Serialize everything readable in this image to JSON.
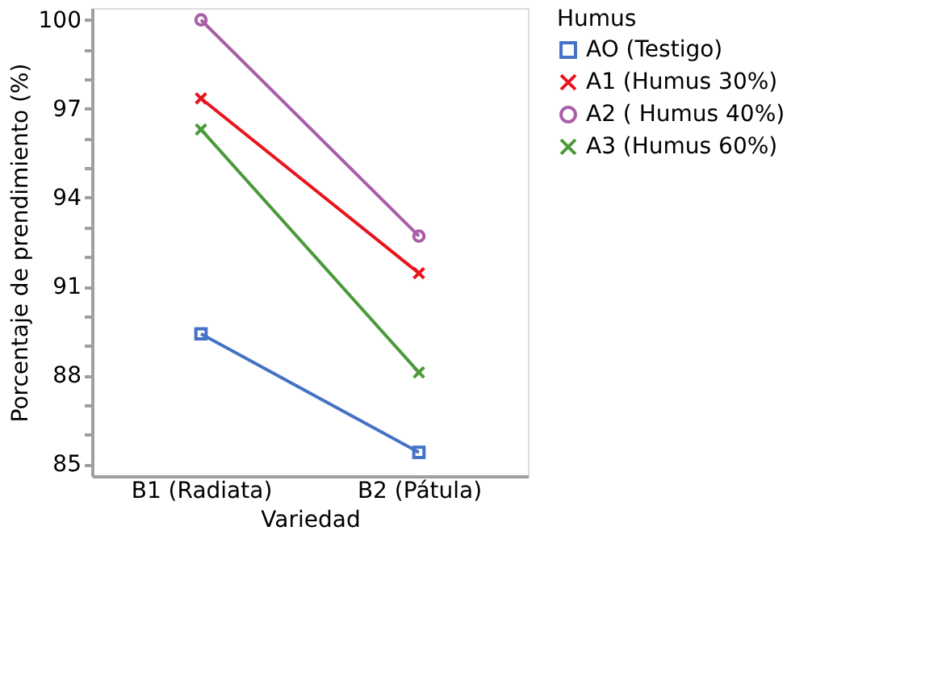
{
  "chart_data": {
    "type": "line",
    "xlabel": "Variedad",
    "ylabel": "Porcentaje de prendimiento (%)",
    "legend_title": "Humus",
    "categories": [
      "B1 (Radiata)",
      "B2 (Pátula)"
    ],
    "series": [
      {
        "name": "AO (Testigo)",
        "color": "#4472c4",
        "marker": "square",
        "values": [
          89.4,
          85.4
        ]
      },
      {
        "name": "A1 (Humus 30%)",
        "color": "#e8141e",
        "marker": "cross",
        "values": [
          97.35,
          91.45
        ]
      },
      {
        "name": "A2 ( Humus 40%)",
        "color": "#a95ea8",
        "marker": "circle",
        "values": [
          100,
          92.7
        ]
      },
      {
        "name": "A3 (Humus 60%)",
        "color": "#4a9a3a",
        "marker": "cross",
        "values": [
          96.3,
          88.1
        ]
      }
    ],
    "ylim": [
      84.6,
      100.4
    ],
    "yticks": [
      85,
      {
        "value": 86,
        "label": null
      },
      {
        "value": 87,
        "label": null
      },
      88,
      {
        "value": 89,
        "label": null
      },
      {
        "value": 90,
        "label": null
      },
      91,
      {
        "value": 92,
        "label": null
      },
      {
        "value": 93,
        "label": null
      },
      94,
      {
        "value": 95,
        "label": null
      },
      {
        "value": 96,
        "label": null
      },
      97,
      {
        "value": 98,
        "label": null
      },
      {
        "value": 99,
        "label": null
      },
      100
    ],
    "grid": false,
    "legend": "top right",
    "line_style": "solid"
  }
}
